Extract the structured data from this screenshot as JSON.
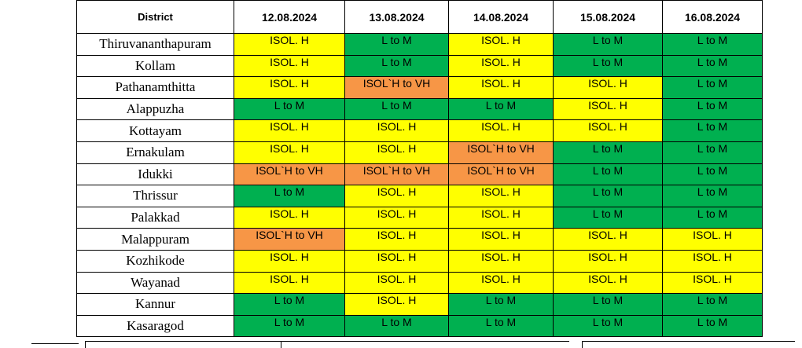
{
  "table": {
    "header": {
      "district": "District",
      "dates": [
        "12.08.2024",
        "13.08.2024",
        "14.08.2024",
        "15.08.2024",
        "16.08.2024"
      ]
    },
    "rows": [
      {
        "district": "Thiruvananthapuram",
        "levels": [
          "ISOL. H",
          "L to M",
          "ISOL. H",
          "L to M",
          "L to M"
        ]
      },
      {
        "district": "Kollam",
        "levels": [
          "ISOL. H",
          "L to M",
          "ISOL. H",
          "L to M",
          "L to M"
        ]
      },
      {
        "district": "Pathanamthitta",
        "levels": [
          "ISOL. H",
          "ISOL`H to VH",
          "ISOL. H",
          "ISOL. H",
          "L to M"
        ]
      },
      {
        "district": "Alappuzha",
        "levels": [
          "L to M",
          "L to M",
          "L to M",
          "ISOL. H",
          "L to M"
        ]
      },
      {
        "district": "Kottayam",
        "levels": [
          "ISOL. H",
          "ISOL. H",
          "ISOL. H",
          "ISOL. H",
          "L to M"
        ]
      },
      {
        "district": "Ernakulam",
        "levels": [
          "ISOL. H",
          "ISOL. H",
          "ISOL`H to VH",
          "L to M",
          "L to M"
        ]
      },
      {
        "district": "Idukki",
        "levels": [
          "ISOL`H to VH",
          "ISOL`H to VH",
          "ISOL`H to VH",
          "L to M",
          "L to M"
        ]
      },
      {
        "district": "Thrissur",
        "levels": [
          "L to M",
          "ISOL. H",
          "ISOL. H",
          "L to M",
          "L to M"
        ]
      },
      {
        "district": "Palakkad",
        "levels": [
          "ISOL. H",
          "ISOL. H",
          "ISOL. H",
          "L to M",
          "L to M"
        ]
      },
      {
        "district": "Malappuram",
        "levels": [
          "ISOL`H to VH",
          "ISOL. H",
          "ISOL. H",
          "ISOL. H",
          "ISOL. H"
        ]
      },
      {
        "district": "Kozhikode",
        "levels": [
          "ISOL. H",
          "ISOL. H",
          "ISOL. H",
          "ISOL. H",
          "ISOL. H"
        ]
      },
      {
        "district": "Wayanad",
        "levels": [
          "ISOL. H",
          "ISOL. H",
          "ISOL. H",
          "ISOL. H",
          "ISOL. H"
        ]
      },
      {
        "district": "Kannur",
        "levels": [
          "L to M",
          "ISOL. H",
          "L to M",
          "L to M",
          "L to M"
        ]
      },
      {
        "district": "Kasaragod",
        "levels": [
          "L to M",
          "L to M",
          "L to M",
          "L to M",
          "L to M"
        ]
      }
    ]
  },
  "level_colors": {
    "L to M": "#00b050",
    "ISOL. H": "#ffff00",
    "ISOL`H to VH": "#f79646"
  }
}
